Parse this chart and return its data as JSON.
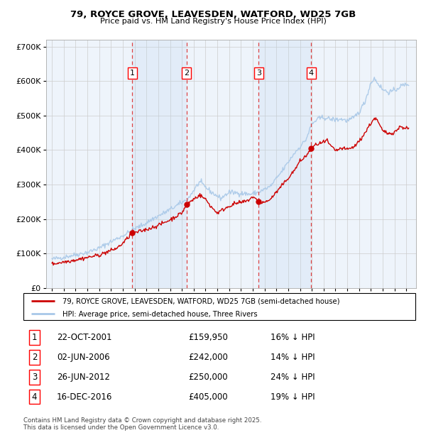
{
  "title": "79, ROYCE GROVE, LEAVESDEN, WATFORD, WD25 7GB",
  "subtitle": "Price paid vs. HM Land Registry's House Price Index (HPI)",
  "legend_line1": "79, ROYCE GROVE, LEAVESDEN, WATFORD, WD25 7GB (semi-detached house)",
  "legend_line2": "HPI: Average price, semi-detached house, Three Rivers",
  "footer_line1": "Contains HM Land Registry data © Crown copyright and database right 2025.",
  "footer_line2": "This data is licensed under the Open Government Licence v3.0.",
  "transactions": [
    {
      "num": 1,
      "date": "22-OCT-2001",
      "price": 159950,
      "pct": "16%",
      "direction": "↓",
      "year_x": 2001.8
    },
    {
      "num": 2,
      "date": "02-JUN-2006",
      "price": 242000,
      "pct": "14%",
      "direction": "↓",
      "year_x": 2006.4
    },
    {
      "num": 3,
      "date": "26-JUN-2012",
      "price": 250000,
      "pct": "24%",
      "direction": "↓",
      "year_x": 2012.5
    },
    {
      "num": 4,
      "date": "16-DEC-2016",
      "price": 405000,
      "pct": "19%",
      "direction": "↓",
      "year_x": 2016.95
    }
  ],
  "hpi_color": "#a8c8e8",
  "price_color": "#cc0000",
  "vline_color": "#dd4444",
  "shade_color": "#ddeeff",
  "grid_color": "#cccccc",
  "background_color": "#eef4fb",
  "ylim": [
    0,
    720000
  ],
  "xlim_start": 1994.5,
  "xlim_end": 2025.8,
  "yticks": [
    0,
    100000,
    200000,
    300000,
    400000,
    500000,
    600000,
    700000
  ],
  "xtick_years": [
    1995,
    1996,
    1997,
    1998,
    1999,
    2000,
    2001,
    2002,
    2003,
    2004,
    2005,
    2006,
    2007,
    2008,
    2009,
    2010,
    2011,
    2012,
    2013,
    2014,
    2015,
    2016,
    2017,
    2018,
    2019,
    2020,
    2021,
    2022,
    2023,
    2024,
    2025
  ]
}
